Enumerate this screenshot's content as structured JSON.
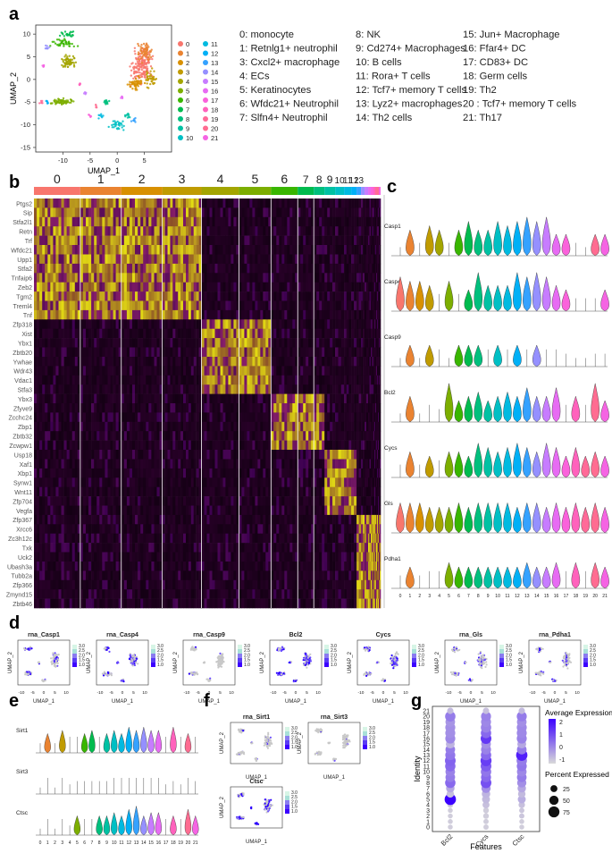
{
  "panels": [
    "a",
    "b",
    "c",
    "d",
    "e",
    "f",
    "g"
  ],
  "umap": {
    "xlabel": "UMAP_1",
    "ylabel": "UMAP_2",
    "xticks": [
      "-10",
      "-5",
      "0",
      "5"
    ],
    "yticks": [
      "10",
      "5",
      "0",
      "-5",
      "-10",
      "-15"
    ]
  },
  "clusters": [
    {
      "id": "0",
      "name": "0:  monocyte",
      "color": "#f8766d"
    },
    {
      "id": "1",
      "name": "1:  Retnlg1+ neutrophil",
      "color": "#ea8331"
    },
    {
      "id": "2",
      "name": "2:  Tcf7+ memory T cells",
      "color": "#d89000"
    },
    {
      "id": "3",
      "name": "3:  Cxcl2+ macrophage",
      "color": "#c09b00"
    },
    {
      "id": "4",
      "name": "4:  ECs",
      "color": "#a3a500"
    },
    {
      "id": "5",
      "name": "5:  Keratinocytes",
      "color": "#7cae00"
    },
    {
      "id": "6",
      "name": "6:  Wfdc21+ Neutrophil",
      "color": "#39b600"
    },
    {
      "id": "7",
      "name": "7:  Slfn4+ Neutrophil",
      "color": "#00bb4e"
    },
    {
      "id": "8",
      "name": "8:  NK",
      "color": "#00bf7d"
    },
    {
      "id": "9",
      "name": "9:  Cd274+ Macrophages",
      "color": "#00c1a3"
    },
    {
      "id": "10",
      "name": "10: B cells",
      "color": "#00bfc4"
    },
    {
      "id": "11",
      "name": "11: Rora+ T cells",
      "color": "#00bae0"
    },
    {
      "id": "12",
      "name": "12: Tcf7+ memory T cells",
      "color": "#00b0f6"
    },
    {
      "id": "13",
      "name": "13: Lyz2+ macrophages",
      "color": "#35a2ff"
    },
    {
      "id": "14",
      "name": "14: Th2 cells",
      "color": "#9590ff"
    },
    {
      "id": "15",
      "name": "15: Jun+ Macrophage",
      "color": "#c77cff"
    },
    {
      "id": "16",
      "name": "16: Ffar4+ DC",
      "color": "#e76bf3"
    },
    {
      "id": "17",
      "name": "17: CD83+ DC",
      "color": "#fa62db"
    },
    {
      "id": "18",
      "name": "18: Germ cells",
      "color": "#ff62bc"
    },
    {
      "id": "19",
      "name": "19:  Th2",
      "color": "#ff6a98"
    },
    {
      "id": "20",
      "name": "20 : Tcf7+ memory T cells",
      "color": "#ff6c91"
    },
    {
      "id": "21",
      "name": "21: Th17",
      "color": "#f564e3"
    }
  ],
  "legend_columns": [
    [
      "0:  monocyte",
      "1:  Retnlg1+ neutrophil",
      "3:  Cxcl2+ macrophage",
      "4:  ECs",
      "5:  Keratinocytes",
      "6:  Wfdc21+ Neutrophil",
      "7:  Slfn4+ Neutrophil"
    ],
    [
      "8:  NK",
      "9:  Cd274+ Macrophages",
      "10: B cells",
      "11: Rora+ T cells",
      "12: Tcf7+ memory T cells",
      "13: Lyz2+ macrophages",
      "14: Th2 cells"
    ],
    [
      "15: Jun+ Macrophage",
      "16: Ffar4+ DC",
      "17: CD83+ DC",
      "18: Germ cells",
      "19:  Th2",
      "20 : Tcf7+ memory T cells",
      "21: Th17"
    ]
  ],
  "heatmap": {
    "cluster_labels": [
      "0",
      "1",
      "2",
      "3",
      "4",
      "5",
      "6",
      "7",
      "8",
      "9",
      "10",
      "11",
      "12",
      "13"
    ],
    "genes": [
      "Ptgs2",
      "Sip",
      "Stfa2l1",
      "Retn",
      "Trf",
      "Wfdc21",
      "Upp1",
      "Stfa2",
      "Tnfaip6",
      "Zeb2",
      "Tgm2",
      "Treml4",
      "Tnf",
      "Zfp318",
      "Xist",
      "Ybx1",
      "Zbtb20",
      "Ywhae",
      "Wdr43",
      "Vdac1",
      "Stfa3",
      "Ybx3",
      "Zfyve9",
      "Zcchc24",
      "Zbp1",
      "Zbtb32",
      "Zcwpw1",
      "Usp18",
      "Xaf1",
      "Xbp1",
      "Synw1",
      "Wnt11",
      "Zfp704",
      "Vegfa",
      "Zfp367",
      "Xrcc6",
      "Zc3h12c",
      "Txk",
      "Uck2",
      "Ubash3a",
      "Tubb2a",
      "Zfp366",
      "Zmynd15",
      "Zbtb46"
    ]
  },
  "violin_c": {
    "genes": [
      "Casp1",
      "Casp4",
      "Casp9",
      "Bcl2",
      "Cycs",
      "Gls",
      "Pdha1"
    ],
    "xticks": [
      "0",
      "1",
      "2",
      "3",
      "4",
      "5",
      "6",
      "7",
      "8",
      "9",
      "10",
      "11",
      "12",
      "13",
      "14",
      "15",
      "16",
      "17",
      "18",
      "19",
      "20",
      "21"
    ]
  },
  "feature_d": {
    "titles": [
      "rna_Casp1",
      "rna_Casp4",
      "rna_Casp9",
      "Bcl2",
      "Cycs",
      "rna_Gls",
      "rna_Pdha1"
    ],
    "scale": [
      "3.0",
      "2.5",
      "2.0",
      "1.5",
      "1.0"
    ],
    "xlabel": "UMAP_1",
    "ylabel": "UMAP_2",
    "xticks": [
      "-10",
      "-5",
      "0",
      "5",
      "10"
    ]
  },
  "violin_e": {
    "genes": [
      "Sirt1",
      "Sirt3",
      "Ctsc"
    ]
  },
  "feature_f": {
    "titles": [
      "rna_Sirt1",
      "rna_Sirt3",
      "Ctsc"
    ]
  },
  "chart_data": {
    "type": "scatter",
    "title": "",
    "xlabel": "Features",
    "ylabel": "Identity",
    "categories_x": [
      "Bcl2",
      "Cycs",
      "Ctsc"
    ],
    "categories_y": [
      "0",
      "1",
      "2",
      "3",
      "4",
      "5",
      "6",
      "7",
      "8",
      "9",
      "10",
      "11",
      "12",
      "13",
      "14",
      "15",
      "16",
      "17",
      "18",
      "19",
      "20",
      "21"
    ],
    "avg_expression": [
      [
        -0.8,
        -0.8,
        -0.8
      ],
      [
        -0.8,
        -0.8,
        -0.8
      ],
      [
        -0.8,
        -0.8,
        -0.7
      ],
      [
        -0.8,
        -0.8,
        -0.7
      ],
      [
        -0.8,
        -0.6,
        -0.6
      ],
      [
        2.5,
        -0.5,
        -0.3
      ],
      [
        -0.6,
        -0.4,
        -0.5
      ],
      [
        -0.2,
        0.2,
        -0.2
      ],
      [
        0.8,
        1.2,
        0.2
      ],
      [
        0.5,
        0.8,
        0.5
      ],
      [
        0.4,
        0.6,
        0.3
      ],
      [
        0.8,
        1.0,
        0.6
      ],
      [
        0.9,
        1.5,
        0.5
      ],
      [
        0.6,
        0.8,
        2.0
      ],
      [
        0.5,
        0.4,
        0.5
      ],
      [
        -0.4,
        0.2,
        -0.2
      ],
      [
        0.3,
        1.6,
        0.4
      ],
      [
        0.2,
        0.8,
        0.3
      ],
      [
        0.2,
        0.4,
        0.3
      ],
      [
        0.1,
        0.3,
        0.2
      ],
      [
        0.5,
        0.4,
        0.5
      ],
      [
        -0.5,
        -0.6,
        -0.5
      ]
    ],
    "pct_expressed": [
      [
        10,
        12,
        10
      ],
      [
        10,
        12,
        10
      ],
      [
        10,
        15,
        12
      ],
      [
        10,
        15,
        12
      ],
      [
        15,
        25,
        20
      ],
      [
        80,
        35,
        35
      ],
      [
        30,
        40,
        30
      ],
      [
        40,
        50,
        40
      ],
      [
        65,
        70,
        50
      ],
      [
        55,
        60,
        55
      ],
      [
        55,
        65,
        55
      ],
      [
        65,
        70,
        60
      ],
      [
        70,
        75,
        65
      ],
      [
        60,
        65,
        80
      ],
      [
        55,
        60,
        55
      ],
      [
        45,
        55,
        45
      ],
      [
        60,
        70,
        60
      ],
      [
        60,
        65,
        60
      ],
      [
        60,
        65,
        60
      ],
      [
        55,
        60,
        55
      ],
      [
        65,
        60,
        60
      ],
      [
        20,
        20,
        20
      ]
    ],
    "color_legend": {
      "title": "Average Expression",
      "ticks": [
        "2",
        "1",
        "0",
        "-1"
      ],
      "low": "#d9d9d9",
      "high": "#3b00ff"
    },
    "size_legend": {
      "title": "Percent Expressed",
      "values": [
        "25",
        "50",
        "75"
      ]
    }
  }
}
